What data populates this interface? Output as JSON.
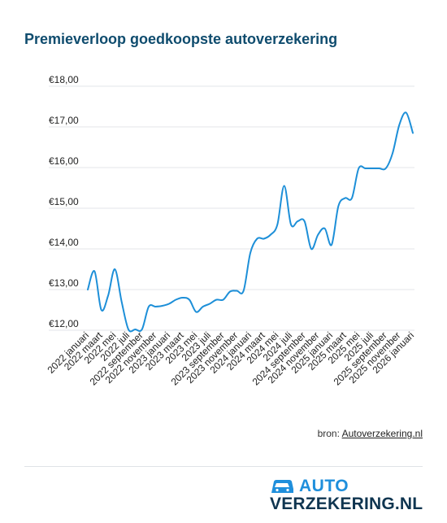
{
  "title": "Premieverloop goedkoopste autoverzekering",
  "source": {
    "prefix": "bron: ",
    "link": "Autoverzekering.nl"
  },
  "logo": {
    "top": "AUTO",
    "bottom": "VERZEKERING.NL",
    "icon": "car-icon"
  },
  "colors": {
    "line": "#1d8fd8",
    "title": "#0f4c6e",
    "grid": "#e3e6e8",
    "logo_blue": "#1f8fdc",
    "logo_dark": "#0f3550"
  },
  "chart_data": {
    "type": "line",
    "title": "Premieverloop goedkoopste autoverzekering",
    "xlabel": "",
    "ylabel": "",
    "ylim": [
      12,
      18
    ],
    "y_ticks": [
      {
        "v": 18,
        "label": "€18,00"
      },
      {
        "v": 17,
        "label": "€17,00"
      },
      {
        "v": 16,
        "label": "€16,00"
      },
      {
        "v": 15,
        "label": "€15,00"
      },
      {
        "v": 14,
        "label": "€14,00"
      },
      {
        "v": 13,
        "label": "€13,00"
      },
      {
        "v": 12,
        "label": "€12,00"
      }
    ],
    "grid": true,
    "legend": "none",
    "x_tick_labels": [
      "2022 januari",
      "2022 maart",
      "2022 mei",
      "2022 juli",
      "2022 september",
      "2022 november",
      "2023 januari",
      "2023 maart",
      "2023 mei",
      "2023 juli",
      "2023 september",
      "2023 november",
      "2024 januari",
      "2024 maart",
      "2024 mei",
      "2024 juli",
      "2024 september",
      "2024 november",
      "2025 januari",
      "2025 maart",
      "2025 mei",
      "2025 juli",
      "2025 september",
      "2025 november",
      "2026 januari"
    ],
    "x": [
      "2022-01",
      "2022-02",
      "2022-03",
      "2022-04",
      "2022-05",
      "2022-06",
      "2022-07",
      "2022-08",
      "2022-09",
      "2022-10",
      "2022-11",
      "2022-12",
      "2023-01",
      "2023-02",
      "2023-03",
      "2023-04",
      "2023-05",
      "2023-06",
      "2023-07",
      "2023-08",
      "2023-09",
      "2023-10",
      "2023-11",
      "2023-12",
      "2024-01",
      "2024-02",
      "2024-03",
      "2024-04",
      "2024-05",
      "2024-06",
      "2024-07",
      "2024-08",
      "2024-09",
      "2024-10",
      "2024-11",
      "2024-12",
      "2025-01",
      "2025-02",
      "2025-03",
      "2025-04",
      "2025-05",
      "2025-06",
      "2025-07",
      "2025-08",
      "2025-09",
      "2025-10",
      "2025-11",
      "2025-12",
      "2026-01"
    ],
    "values": [
      13.0,
      13.45,
      12.5,
      12.85,
      13.5,
      12.7,
      12.02,
      12.02,
      12.02,
      12.58,
      12.58,
      12.6,
      12.65,
      12.75,
      12.8,
      12.75,
      12.45,
      12.58,
      12.65,
      12.75,
      12.75,
      12.95,
      12.97,
      12.97,
      13.9,
      14.25,
      14.25,
      14.35,
      14.6,
      15.55,
      14.6,
      14.68,
      14.68,
      14.0,
      14.35,
      14.5,
      14.1,
      15.05,
      15.25,
      15.25,
      15.98,
      15.98,
      15.98,
      15.98,
      15.98,
      16.35,
      17.05,
      17.35,
      16.85
    ]
  }
}
